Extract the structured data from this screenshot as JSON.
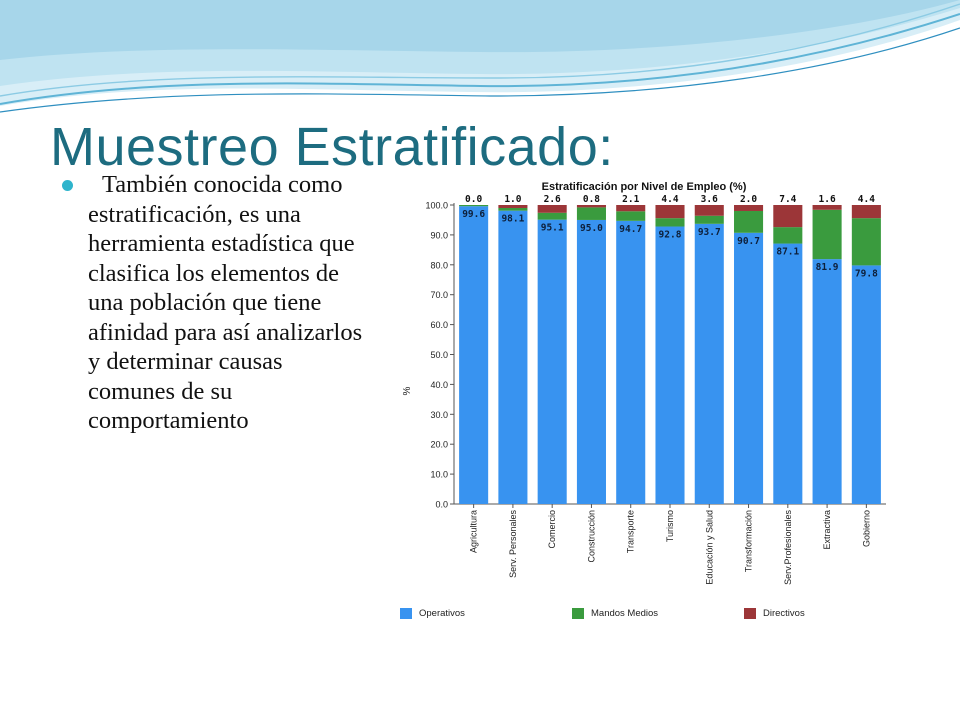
{
  "slide": {
    "title": "Muestreo Estratificado:",
    "bullet": "También conocida como estratificación, es una herramienta estadística que clasifica los elementos de una población que tiene afinidad para así analizarlos y determinar causas comunes de su comportamiento"
  },
  "colors": {
    "title": "#1d6c80",
    "bullet": "#2eb4cc",
    "operativos": "#3893f0",
    "mandos_medios": "#3a9b3e",
    "directivos": "#9c3638"
  },
  "chart_data": {
    "type": "bar",
    "stacked": true,
    "title": "Estratificación por Nivel de Empleo (%)",
    "xlabel": "",
    "ylabel": "%",
    "ylim": [
      0,
      100
    ],
    "yticks": [
      "0.0",
      "10.0",
      "20.0",
      "30.0",
      "40.0",
      "50.0",
      "60.0",
      "70.0",
      "80.0",
      "90.0",
      "100.0"
    ],
    "grid": false,
    "legend_position": "bottom",
    "categories": [
      "Agricultura",
      "Serv. Personales",
      "Comercio",
      "Construcción",
      "Transporte",
      "Turismo",
      "Educación y Salud",
      "Transformación",
      "Serv.Profesionales",
      "Extractiva",
      "Gobierno"
    ],
    "series": [
      {
        "name": "Operativos",
        "values": [
          99.6,
          98.1,
          95.1,
          95.0,
          94.7,
          92.8,
          93.7,
          90.7,
          87.1,
          81.9,
          79.8
        ]
      },
      {
        "name": "Mandos Medios",
        "values": [
          0.4,
          0.9,
          2.3,
          4.2,
          3.2,
          2.8,
          2.7,
          7.3,
          5.5,
          16.5,
          15.8
        ]
      },
      {
        "name": "Directivos",
        "values": [
          0.0,
          1.0,
          2.6,
          0.8,
          2.1,
          4.4,
          3.6,
          2.0,
          7.4,
          1.6,
          4.4
        ]
      }
    ],
    "labels_inside": [
      "99.6",
      "98.1",
      "95.1",
      "95.0",
      "94.7",
      "92.8",
      "93.7",
      "90.7",
      "87.1",
      "81.9",
      "79.8"
    ],
    "labels_top": [
      "0.0",
      "1.0",
      "2.6",
      "0.8",
      "2.1",
      "4.4",
      "3.6",
      "2.0",
      "7.4",
      "1.6",
      "4.4"
    ]
  }
}
